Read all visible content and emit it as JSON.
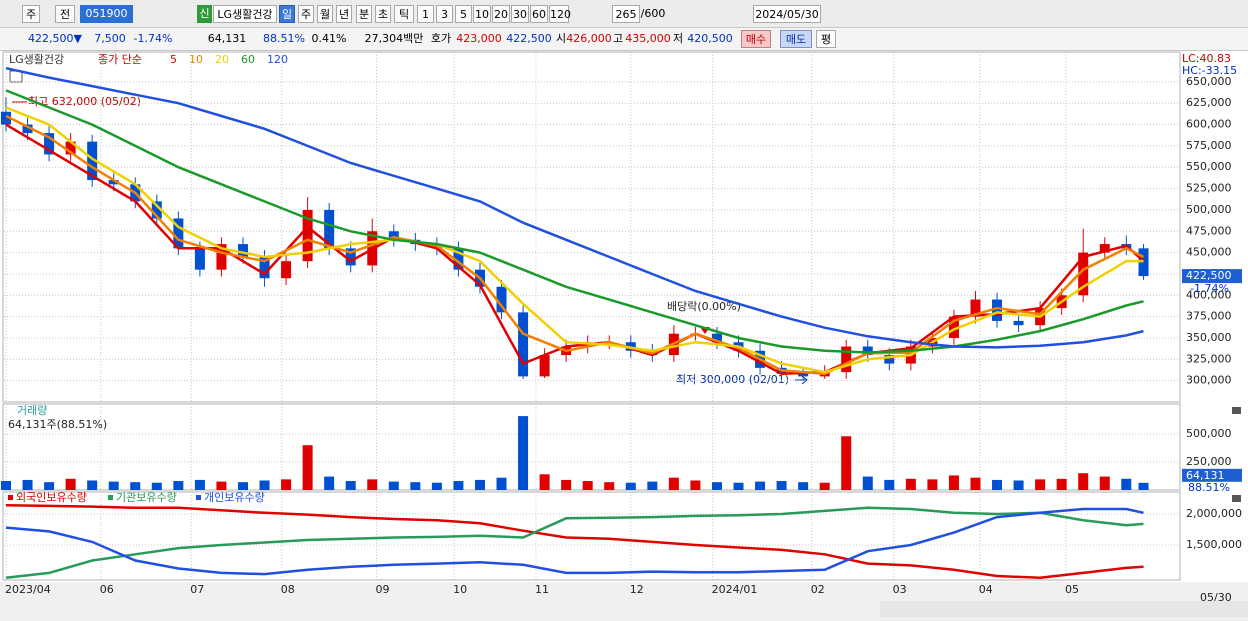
{
  "toolbar": {
    "row1": [
      "주",
      "전",
      "051900",
      "신",
      "LG생활건강",
      "일",
      "주",
      "월",
      "년",
      "분",
      "초",
      "틱",
      "1",
      "3",
      "5",
      "10",
      "20",
      "30",
      "60",
      "120",
      "265",
      "/600",
      "2024/05/30"
    ],
    "row2": [
      "422,500▼",
      "7,500",
      "-1.74%",
      "64,131",
      "88.51%",
      "0.41%",
      "27,304백만",
      "호가",
      "423,000",
      "422,500",
      "시",
      "426,000",
      "고",
      "435,000",
      "저",
      "420,500",
      "매수",
      "매도",
      "평"
    ]
  },
  "xaxis": {
    "xlim": [
      0,
      272
    ],
    "xticks": [
      {
        "value": 0,
        "label": "2023/04"
      },
      {
        "value": 22,
        "label": "06"
      },
      {
        "value": 43,
        "label": "07"
      },
      {
        "value": 64,
        "label": "08"
      },
      {
        "value": 86,
        "label": "09"
      },
      {
        "value": 104,
        "label": "10"
      },
      {
        "value": 123,
        "label": "11"
      },
      {
        "value": 145,
        "label": "12"
      },
      {
        "value": 164,
        "label": "2024/01"
      },
      {
        "value": 187,
        "label": "02"
      },
      {
        "value": 206,
        "label": "03"
      },
      {
        "value": 226,
        "label": "04"
      },
      {
        "value": 246,
        "label": "05"
      }
    ],
    "end_label": "05/30"
  },
  "chart_data": [
    {
      "type": "candlestick",
      "name": "LG생활건강",
      "legend_title": "종가 단순",
      "up_color": "#e00000",
      "down_color": "#0050d0",
      "x": [
        0,
        5,
        10,
        15,
        20,
        25,
        30,
        35,
        40,
        45,
        50,
        55,
        60,
        65,
        70,
        75,
        80,
        85,
        90,
        95,
        100,
        105,
        110,
        115,
        120,
        125,
        130,
        135,
        140,
        145,
        150,
        155,
        160,
        165,
        170,
        175,
        180,
        185,
        190,
        195,
        200,
        205,
        210,
        215,
        220,
        225,
        230,
        235,
        240,
        245,
        250,
        255,
        260,
        264
      ],
      "open": [
        615000,
        600000,
        590000,
        565000,
        580000,
        535000,
        530000,
        510000,
        490000,
        455000,
        430000,
        460000,
        445000,
        420000,
        440000,
        500000,
        455000,
        435000,
        475000,
        465000,
        460000,
        455000,
        430000,
        410000,
        380000,
        305000,
        330000,
        340000,
        345000,
        345000,
        335000,
        330000,
        355000,
        355000,
        345000,
        335000,
        315000,
        308000,
        305000,
        310000,
        340000,
        330000,
        320000,
        340000,
        350000,
        375000,
        395000,
        370000,
        365000,
        385000,
        400000,
        450000,
        460000,
        455000
      ],
      "high": [
        632000,
        608000,
        598000,
        590000,
        588000,
        543000,
        538000,
        518000,
        498000,
        463000,
        468000,
        468000,
        453000,
        448000,
        515000,
        508000,
        463000,
        490000,
        483000,
        473000,
        468000,
        463000,
        438000,
        418000,
        388000,
        338000,
        348000,
        353000,
        353000,
        353000,
        343000,
        365000,
        363000,
        363000,
        353000,
        343000,
        323000,
        316000,
        318000,
        348000,
        348000,
        338000,
        348000,
        358000,
        383000,
        405000,
        403000,
        378000,
        393000,
        408000,
        478000,
        468000,
        470000,
        460000
      ],
      "low": [
        592000,
        582000,
        557000,
        557000,
        527000,
        522000,
        502000,
        482000,
        447000,
        422000,
        422000,
        437000,
        410000,
        412000,
        432000,
        447000,
        427000,
        427000,
        457000,
        452000,
        447000,
        422000,
        402000,
        372000,
        302000,
        303000,
        322000,
        332000,
        337000,
        327000,
        322000,
        322000,
        347000,
        337000,
        327000,
        307000,
        302000,
        300000,
        302000,
        302000,
        322000,
        312000,
        312000,
        332000,
        342000,
        367000,
        362000,
        357000,
        357000,
        377000,
        392000,
        442000,
        447000,
        418000
      ],
      "close": [
        600000,
        590000,
        565000,
        580000,
        535000,
        530000,
        510000,
        490000,
        455000,
        430000,
        460000,
        445000,
        420000,
        440000,
        500000,
        455000,
        435000,
        475000,
        465000,
        460000,
        455000,
        430000,
        410000,
        380000,
        305000,
        330000,
        340000,
        345000,
        345000,
        335000,
        330000,
        355000,
        355000,
        345000,
        335000,
        315000,
        308000,
        305000,
        310000,
        340000,
        330000,
        320000,
        340000,
        350000,
        375000,
        395000,
        370000,
        365000,
        385000,
        400000,
        450000,
        460000,
        455000,
        422500
      ],
      "line_x": [
        0,
        10,
        20,
        30,
        40,
        50,
        60,
        70,
        80,
        90,
        100,
        110,
        120,
        130,
        140,
        150,
        160,
        170,
        180,
        190,
        200,
        210,
        220,
        230,
        240,
        250,
        260,
        264
      ],
      "ma_series": [
        {
          "name": "5",
          "color": "#e00000",
          "values": [
            600000,
            570000,
            540000,
            510000,
            455000,
            455000,
            425000,
            480000,
            440000,
            468000,
            455000,
            412000,
            320000,
            340000,
            345000,
            330000,
            355000,
            335000,
            308000,
            310000,
            332000,
            338000,
            375000,
            378000,
            385000,
            445000,
            458000,
            440000
          ]
        },
        {
          "name": "10",
          "color": "#f08000",
          "values": [
            610000,
            585000,
            550000,
            520000,
            465000,
            450000,
            440000,
            465000,
            450000,
            468000,
            458000,
            420000,
            355000,
            335000,
            345000,
            332000,
            355000,
            338000,
            312000,
            308000,
            332000,
            333000,
            370000,
            385000,
            378000,
            430000,
            455000,
            445000
          ]
        },
        {
          "name": "20",
          "color": "#f0d000",
          "values": [
            620000,
            600000,
            560000,
            530000,
            480000,
            455000,
            445000,
            450000,
            460000,
            465000,
            460000,
            440000,
            390000,
            345000,
            342000,
            335000,
            345000,
            340000,
            320000,
            310000,
            325000,
            330000,
            360000,
            380000,
            375000,
            410000,
            440000,
            440000
          ]
        },
        {
          "name": "60",
          "color": "#1a9a2a",
          "values": [
            640000,
            620000,
            600000,
            575000,
            550000,
            530000,
            510000,
            490000,
            475000,
            465000,
            460000,
            450000,
            430000,
            410000,
            395000,
            380000,
            365000,
            350000,
            340000,
            335000,
            333000,
            335000,
            340000,
            348000,
            358000,
            372000,
            388000,
            393000
          ]
        },
        {
          "name": "120",
          "color": "#2050e0",
          "values": [
            666000,
            655000,
            645000,
            635000,
            625000,
            610000,
            595000,
            575000,
            555000,
            540000,
            525000,
            510000,
            485000,
            465000,
            445000,
            425000,
            405000,
            390000,
            375000,
            362000,
            352000,
            345000,
            340000,
            339000,
            341000,
            345000,
            353000,
            358000
          ]
        }
      ],
      "ylim": [
        275000,
        685000
      ],
      "yticks": [
        {
          "value": 300000,
          "label": "300,000"
        },
        {
          "value": 325000,
          "label": "325,000"
        },
        {
          "value": 350000,
          "label": "350,000"
        },
        {
          "value": 375000,
          "label": "375,000"
        },
        {
          "value": 400000,
          "label": "400,000"
        },
        {
          "value": 425000,
          "label": "425,000"
        },
        {
          "value": 450000,
          "label": "450,000"
        },
        {
          "value": 475000,
          "label": "475,000"
        },
        {
          "value": 500000,
          "label": "500,000"
        },
        {
          "value": 525000,
          "label": "525,000"
        },
        {
          "value": 550000,
          "label": "550,000"
        },
        {
          "value": 575000,
          "label": "575,000"
        },
        {
          "value": 600000,
          "label": "600,000"
        },
        {
          "value": 625000,
          "label": "625,000"
        },
        {
          "value": 650000,
          "label": "650,000"
        }
      ],
      "annotations": {
        "high": "최고 632,000 (05/02)",
        "dividend": "배당락(0.00%)",
        "low": "최저 300,000 (02/01)",
        "lc": "LC:40.83",
        "hc": "HC:-33.15"
      },
      "price_tag": "422,500",
      "change_tag": "-1.74%",
      "grid": true
    },
    {
      "type": "volume",
      "title": "거래량",
      "subtitle": "64,131주(88.51%)",
      "values": [
        80000,
        90000,
        70000,
        100000,
        85000,
        75000,
        70000,
        65000,
        80000,
        90000,
        75000,
        70000,
        85000,
        95000,
        400000,
        120000,
        80000,
        95000,
        75000,
        70000,
        65000,
        80000,
        90000,
        110000,
        660000,
        140000,
        90000,
        80000,
        70000,
        65000,
        75000,
        110000,
        85000,
        70000,
        65000,
        75000,
        80000,
        70000,
        65000,
        480000,
        120000,
        90000,
        100000,
        95000,
        130000,
        110000,
        90000,
        85000,
        95000,
        100000,
        150000,
        120000,
        100000,
        64131
      ],
      "ylim": [
        0,
        768000
      ],
      "yticks": [
        {
          "value": 250000,
          "label": "250,000"
        },
        {
          "value": 500000,
          "label": "500,000"
        }
      ],
      "last_tag": "64,131",
      "pct_tag": "88.51%"
    },
    {
      "type": "line",
      "x": [
        0,
        10,
        20,
        30,
        40,
        50,
        60,
        70,
        80,
        90,
        100,
        110,
        120,
        130,
        140,
        150,
        160,
        170,
        180,
        190,
        200,
        210,
        220,
        230,
        240,
        250,
        260,
        264
      ],
      "series": [
        {
          "name": "외국인보유수량",
          "color": "#e00000",
          "values": [
            2140000,
            2130000,
            2120000,
            2100000,
            2100000,
            2060000,
            2020000,
            1990000,
            1950000,
            1920000,
            1900000,
            1850000,
            1730000,
            1620000,
            1600000,
            1550000,
            1500000,
            1460000,
            1420000,
            1350000,
            1200000,
            1170000,
            1100000,
            1000000,
            970000,
            1050000,
            1130000,
            1150000
          ]
        },
        {
          "name": "기관보유수량",
          "color": "#2a9a5a",
          "values": [
            970000,
            1050000,
            1250000,
            1350000,
            1450000,
            1500000,
            1540000,
            1580000,
            1600000,
            1620000,
            1630000,
            1650000,
            1620000,
            1930000,
            1940000,
            1950000,
            1970000,
            1980000,
            2000000,
            2050000,
            2100000,
            2080000,
            2020000,
            2000000,
            2020000,
            1900000,
            1820000,
            1840000
          ]
        },
        {
          "name": "개인보유수량",
          "color": "#2050e0",
          "values": [
            1780000,
            1720000,
            1550000,
            1250000,
            1120000,
            1050000,
            1030000,
            1100000,
            1150000,
            1180000,
            1200000,
            1220000,
            1180000,
            1050000,
            1050000,
            1070000,
            1060000,
            1060000,
            1080000,
            1100000,
            1400000,
            1500000,
            1700000,
            1950000,
            2020000,
            2080000,
            2080000,
            2020000
          ]
        }
      ],
      "ylim": [
        935000,
        2355000
      ],
      "yticks": [
        {
          "value": 1500000,
          "label": "1,500,000"
        },
        {
          "value": 2000000,
          "label": "2,000,000"
        }
      ]
    }
  ]
}
